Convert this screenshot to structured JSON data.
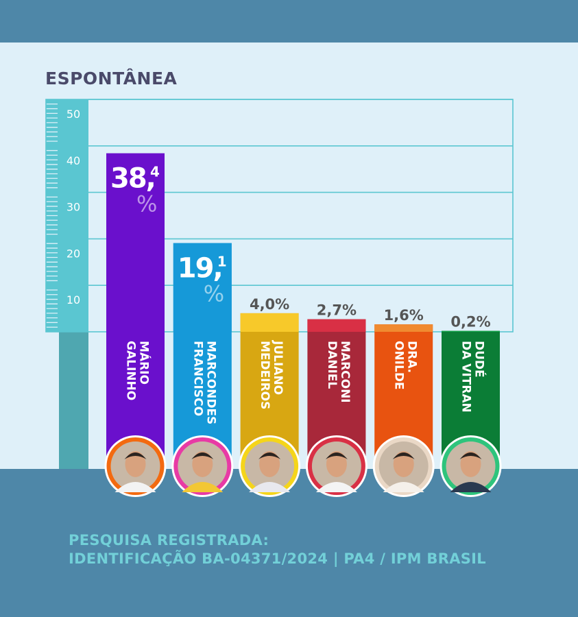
{
  "colors": {
    "top_band": "#4e87a8",
    "panel": "#dff0f9",
    "bottom_band": "#4e87a8",
    "ruler": "#5ac6d1",
    "ruler_base": "#4fa7b0",
    "grid": "#5ac6d1",
    "title": "#4a4a6a",
    "label_text": "#555555",
    "footer_text": "#72d0d8"
  },
  "chart_data": {
    "type": "bar",
    "title": "ESPONTÂNEA",
    "ylim": [
      0,
      50
    ],
    "yticks": [
      "10",
      "20",
      "30",
      "40",
      "50"
    ],
    "grid": true,
    "categories": [
      "MÁRIO GALINHO",
      "MARCONDES FRANCISCO",
      "JULIANO MEDEIROS",
      "MARCONI DANIEL",
      "DRA. ONILDE",
      "DUDÉ DA VITRAN"
    ],
    "values": [
      38.4,
      19.1,
      4.0,
      2.7,
      1.6,
      0.2
    ],
    "bars": [
      {
        "name_lines": [
          "MÁRIO",
          "GALINHO"
        ],
        "value": 38.4,
        "int_part": "38,",
        "dec_part": "4",
        "pct": "%",
        "label": "38,4%",
        "label_style": "inside",
        "color": "#6a10cc",
        "top_color": "#6a10cc",
        "photo_ring": "#f36a10",
        "shirt": "#f3f3f3"
      },
      {
        "name_lines": [
          "MARCONDES",
          "FRANCISCO"
        ],
        "value": 19.1,
        "int_part": "19,",
        "dec_part": "1",
        "pct": "%",
        "label": "19,1%",
        "label_style": "inside",
        "color": "#1699d8",
        "top_color": "#1699d8",
        "photo_ring": "#e83aa5",
        "shirt": "#f2c734"
      },
      {
        "name_lines": [
          "JULIANO",
          "MEDEIROS"
        ],
        "value": 4.0,
        "label": "4,0%",
        "label_style": "above",
        "color": "#d8a712",
        "top_color": "#f7c92a",
        "photo_ring": "#f5d51a",
        "shirt": "#e8e8ee"
      },
      {
        "name_lines": [
          "MARCONI",
          "DANIEL"
        ],
        "value": 2.7,
        "label": "2,7%",
        "label_style": "above",
        "color": "#a8283a",
        "top_color": "#d93045",
        "photo_ring": "#d93045",
        "shirt": "#f4f4f4"
      },
      {
        "name_lines": [
          "DRA.",
          "ONILDE"
        ],
        "value": 1.6,
        "label": "1,6%",
        "label_style": "above",
        "color": "#e85310",
        "top_color": "#f08a30",
        "photo_ring": "#ead8c6",
        "shirt": "#f5f0ea"
      },
      {
        "name_lines": [
          "DUDÉ",
          "DA VITRAN"
        ],
        "value": 0.2,
        "label": "0,2%",
        "label_style": "above",
        "color": "#0b7d36",
        "top_color": "#16a34a",
        "photo_ring": "#2ec47c",
        "shirt": "#2a3a50"
      }
    ]
  },
  "footer": {
    "line1": "PESQUISA REGISTRADA:",
    "line2": "IDENTIFICAÇÃO BA-04371/2024 | PA4 / IPM BRASIL"
  }
}
